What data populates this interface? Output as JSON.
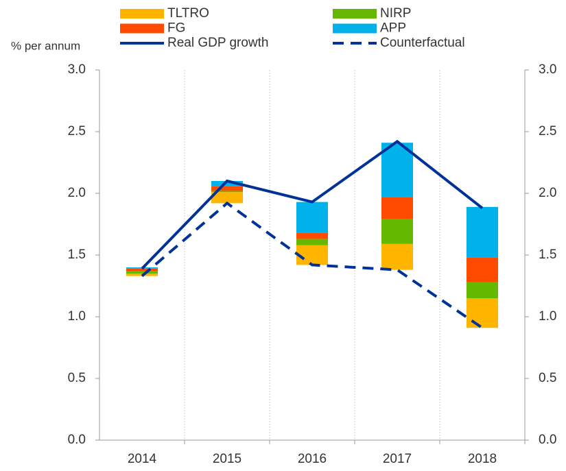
{
  "chart_data": {
    "type": "bar",
    "stacked": true,
    "y_label": "% per annum",
    "categories": [
      "2014",
      "2015",
      "2016",
      "2017",
      "2018"
    ],
    "series": [
      {
        "name": "TLTRO",
        "color": "#ffb400",
        "values": [
          0.02,
          0.09,
          0.16,
          0.21,
          0.24
        ]
      },
      {
        "name": "NIRP",
        "color": "#65b800",
        "values": [
          0.02,
          0.01,
          0.05,
          0.2,
          0.13
        ]
      },
      {
        "name": "FG",
        "color": "#ff4b00",
        "values": [
          0.02,
          0.04,
          0.05,
          0.18,
          0.2
        ]
      },
      {
        "name": "APP",
        "color": "#00b1ea",
        "values": [
          0.01,
          0.04,
          0.25,
          0.44,
          0.41
        ]
      },
      {
        "name": "Real GDP growth",
        "type": "line",
        "color": "#003299",
        "dashed": false,
        "values": [
          1.39,
          2.1,
          1.93,
          2.42,
          1.88
        ]
      },
      {
        "name": "Counterfactual",
        "type": "line",
        "color": "#003299",
        "dashed": true,
        "values": [
          1.33,
          1.92,
          1.42,
          1.38,
          0.91
        ]
      }
    ],
    "ylim": [
      0,
      3
    ],
    "yticks": [
      {
        "value": 0,
        "label": "0.0"
      },
      {
        "value": 0.5,
        "label": "0.5"
      },
      {
        "value": 1,
        "label": "1.0"
      },
      {
        "value": 1.5,
        "label": "1.5"
      },
      {
        "value": 2,
        "label": "2.0"
      },
      {
        "value": 2.5,
        "label": "2.5"
      },
      {
        "value": 3,
        "label": "3.0"
      }
    ],
    "grid": true
  }
}
